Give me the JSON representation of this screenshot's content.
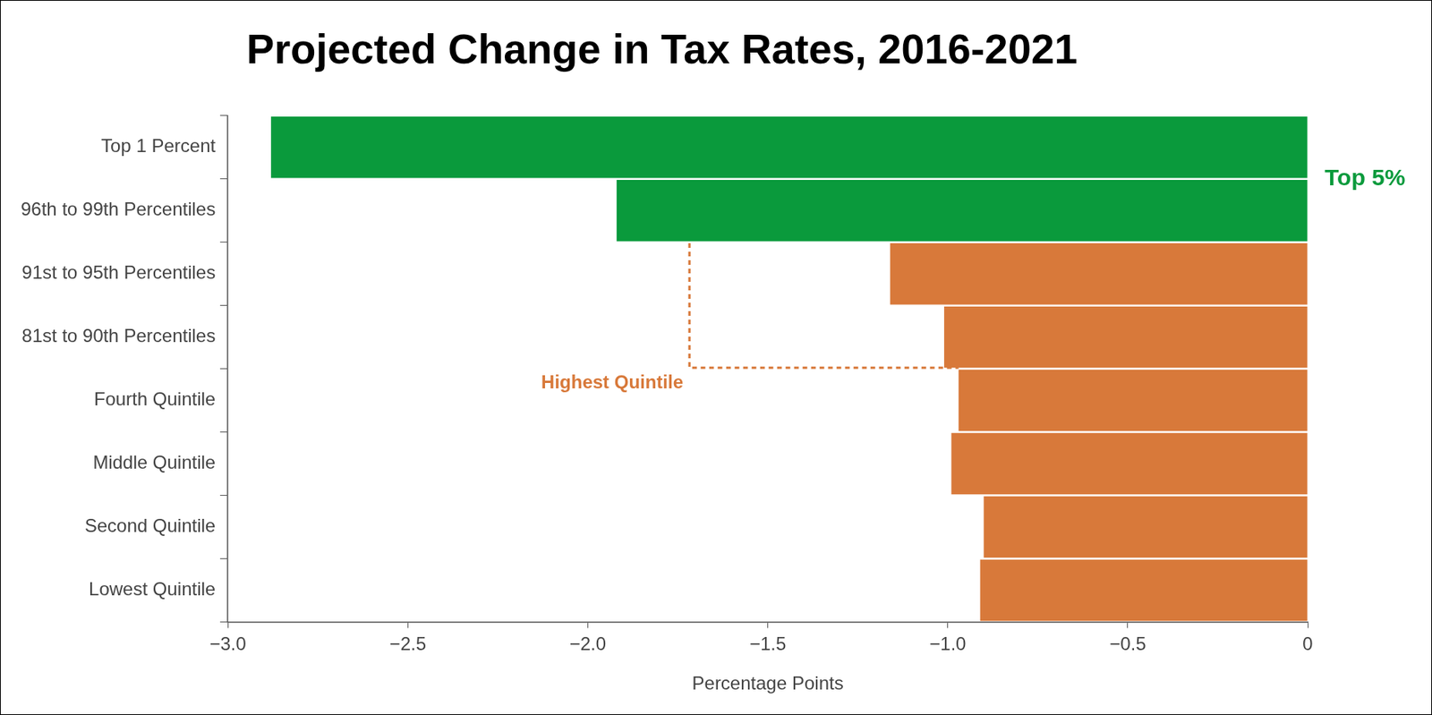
{
  "chart_data": {
    "type": "bar",
    "title": "Projected Change in Tax Rates, 2016-2021",
    "orientation": "horizontal",
    "categories": [
      "Top 1 Percent",
      "96th to 99th Percentiles",
      "91st to 95th Percentiles",
      "81st to 90th Percentiles",
      "Fourth Quintile",
      "Middle Quintile",
      "Second Quintile",
      "Lowest Quintile"
    ],
    "values": [
      -2.88,
      -1.92,
      -1.16,
      -1.01,
      -0.97,
      -0.99,
      -0.9,
      -0.91
    ],
    "colors": [
      "#0a9a3c",
      "#0a9a3c",
      "#d8793a",
      "#d8793a",
      "#d8793a",
      "#d8793a",
      "#d8793a",
      "#d8793a"
    ],
    "x_label": "Percentage Points",
    "xlim": [
      -3,
      0
    ],
    "xticks": [
      {
        "value": -3,
        "label": "−3.0"
      },
      {
        "value": -2.5,
        "label": "−2.5"
      },
      {
        "value": -2,
        "label": "−2.0"
      },
      {
        "value": -1.5,
        "label": "−1.5"
      },
      {
        "value": -1,
        "label": "−1.0"
      },
      {
        "value": -0.5,
        "label": "−0.5"
      },
      0
    ],
    "grid": false,
    "annotations": [
      {
        "text": "Top 5%",
        "color": "#0a9a3c"
      },
      {
        "text": "Highest Quintile",
        "color": "#d8793a"
      }
    ]
  }
}
